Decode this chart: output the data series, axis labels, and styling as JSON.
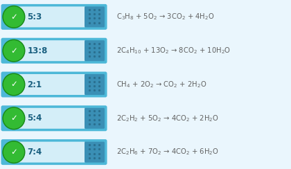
{
  "bg_color": "#eaf6fd",
  "rows": [
    {
      "ratio": "5:3",
      "equation": "C$_3$H$_8$ + 5O$_2$ → 3CO$_2$ + 4H$_2$O"
    },
    {
      "ratio": "13:8",
      "equation": "2C$_4$H$_{10}$ + 13O$_2$ → 8CO$_2$ + 10H$_2$O"
    },
    {
      "ratio": "2:1",
      "equation": "CH$_4$ + 2O$_2$ → CO$_2$ + 2H$_2$O"
    },
    {
      "ratio": "5:4",
      "equation": "2C$_2$H$_2$ + 5O$_2$ → 4CO$_2$ + 2H$_2$O"
    },
    {
      "ratio": "7:4",
      "equation": "2C$_2$H$_6$ + 7O$_2$ → 4CO$_2$ + 6H$_2$O"
    }
  ],
  "pill_outer_color": "#4db8d8",
  "pill_inner_color": "#d4eef8",
  "pill_light_color": "#e8f6fc",
  "tile_color": "#3a8fb5",
  "tile_dot_color": "#2a6f8f",
  "green_outer": "#1a8a1a",
  "green_inner": "#33bb33",
  "green_check": "#ffffff",
  "ratio_color": "#1a6080",
  "eq_color": "#606060"
}
